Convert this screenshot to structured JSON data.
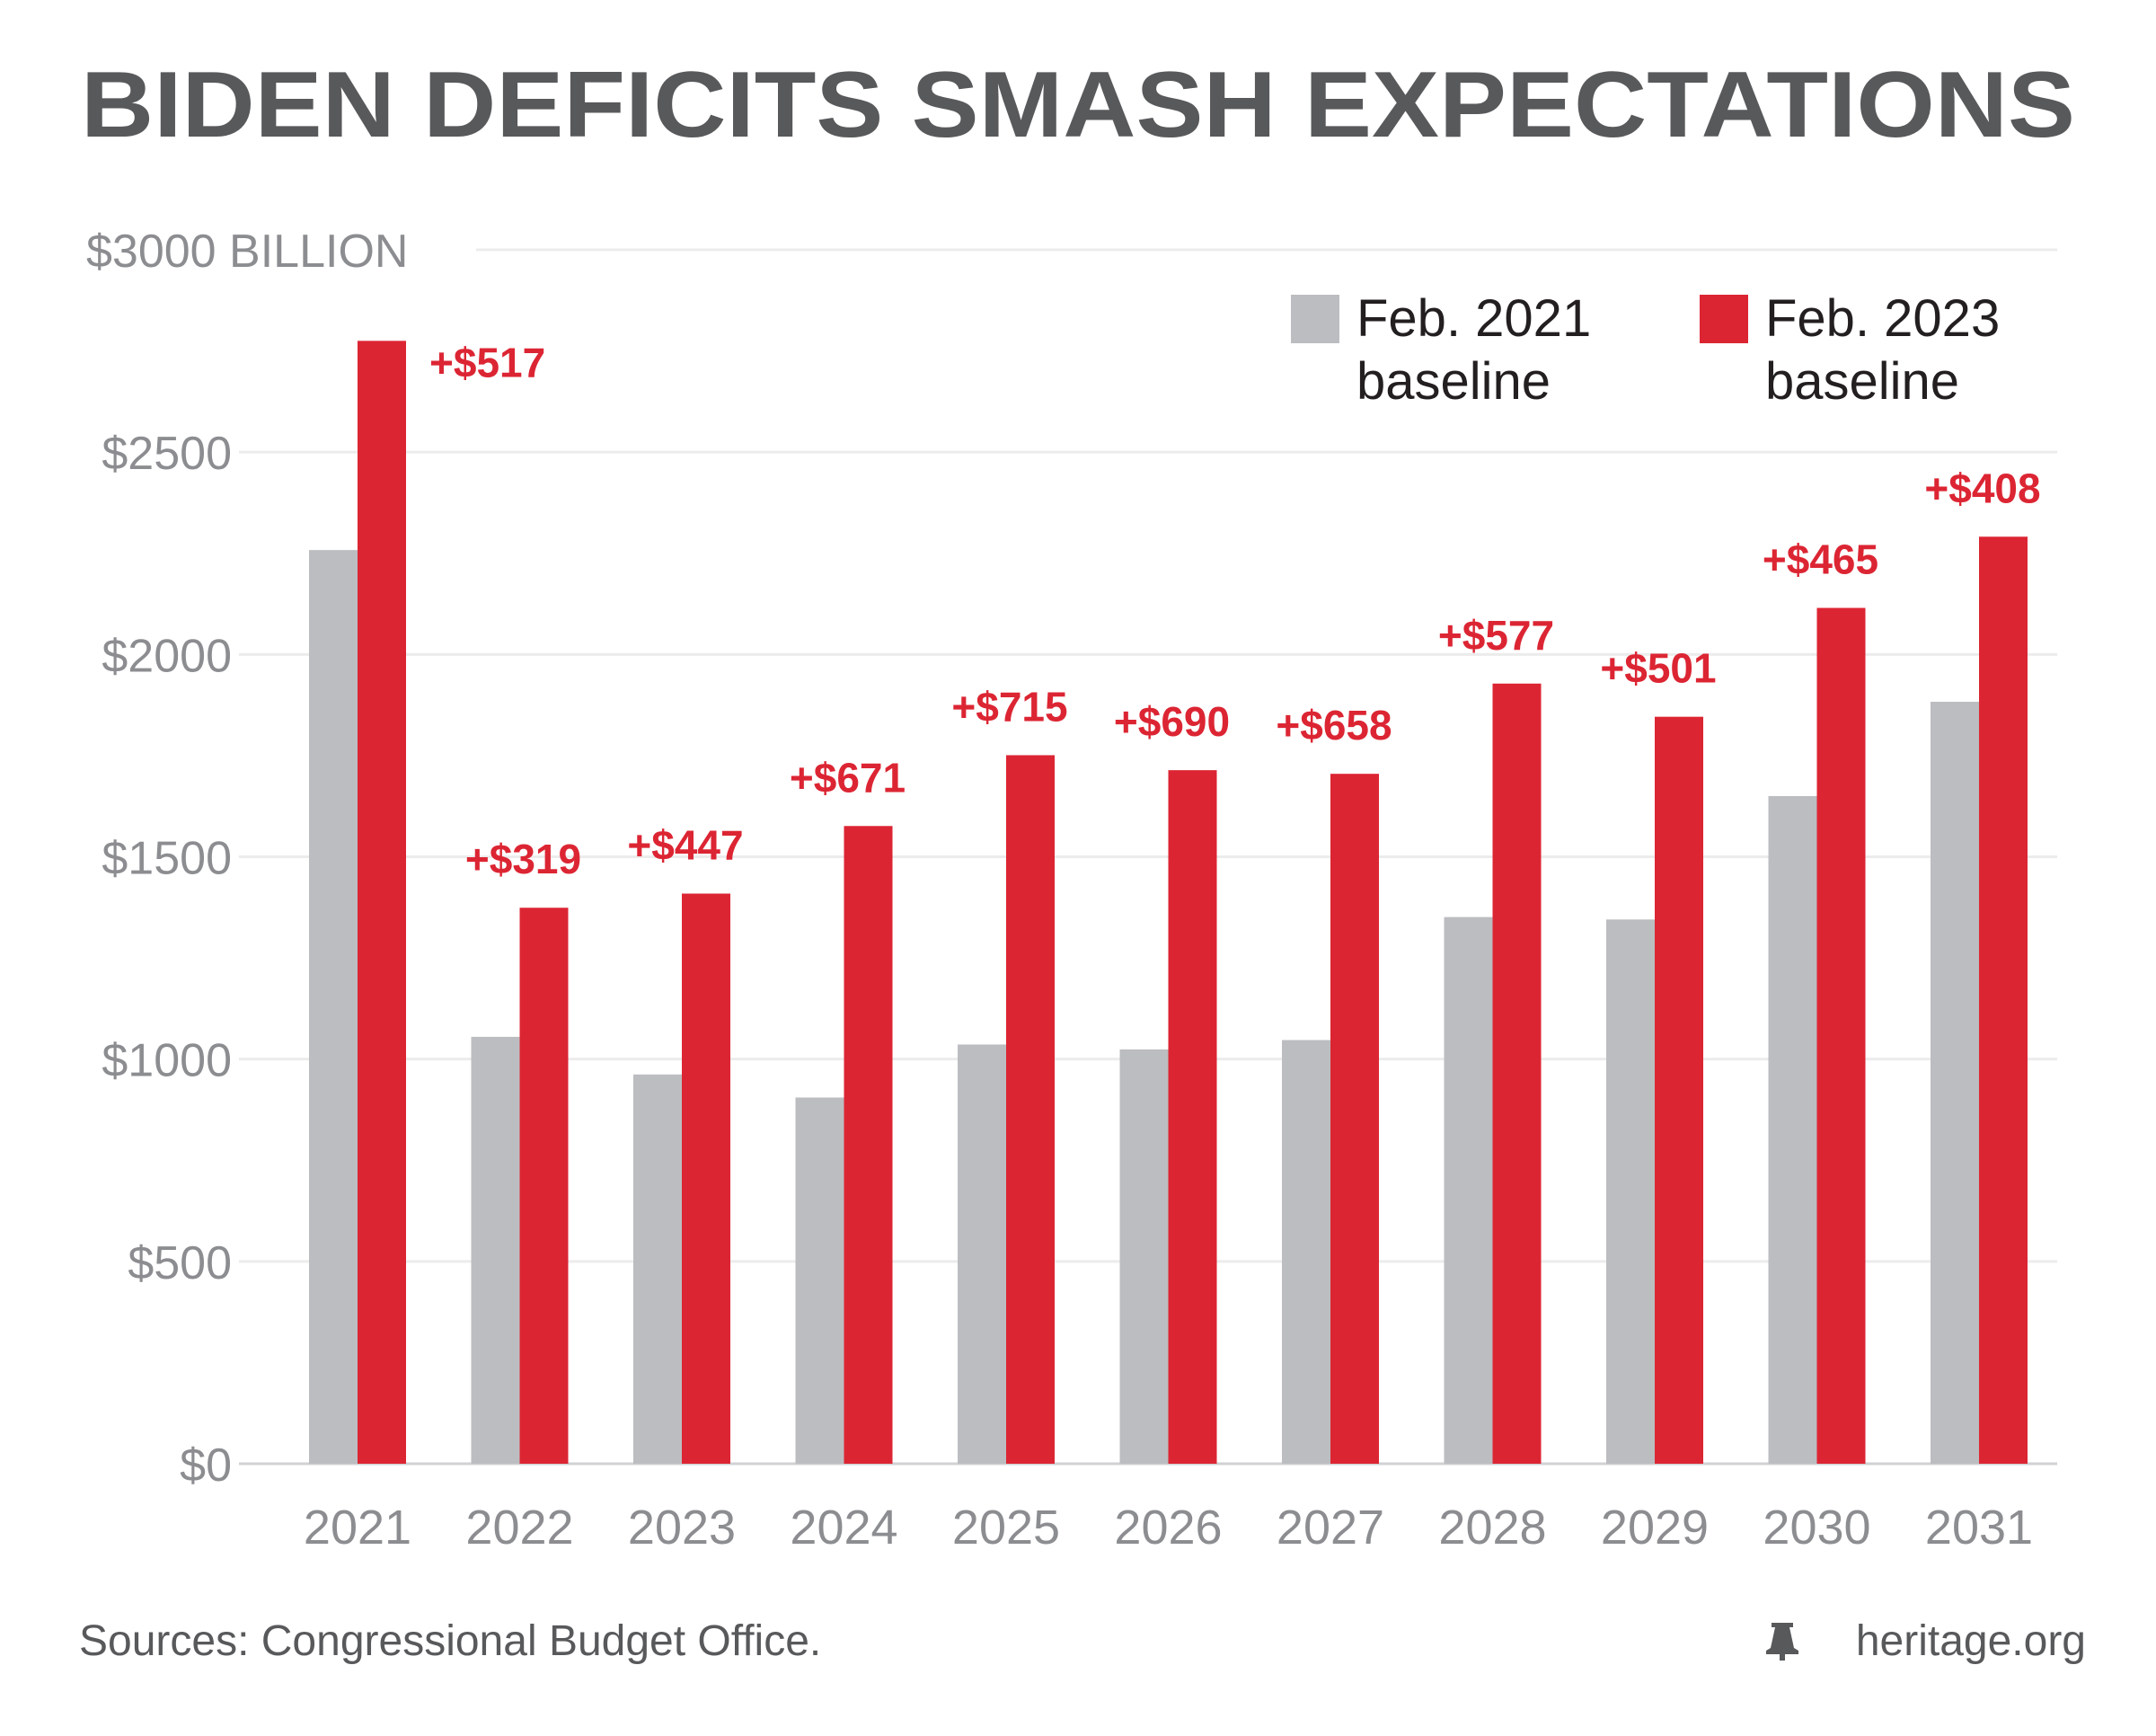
{
  "chart_data": {
    "type": "bar",
    "title": "BIDEN DEFICITS SMASH EXPECTATIONS",
    "y_unit_label": "BILLION",
    "y_tick_labels": [
      "$0",
      "$500",
      "$1000",
      "$1500",
      "$2000",
      "$2500",
      "$3000"
    ],
    "ylim": [
      0,
      3000
    ],
    "categories": [
      "2021",
      "2022",
      "2023",
      "2024",
      "2025",
      "2026",
      "2027",
      "2028",
      "2029",
      "2030",
      "2031"
    ],
    "series": [
      {
        "name": "Feb. 2021 baseline",
        "color": "#bcbdc0",
        "values": [
          2258,
          1055,
          962,
          905,
          1036,
          1024,
          1047,
          1351,
          1345,
          1650,
          1883
        ]
      },
      {
        "name": "Feb. 2023 baseline",
        "color": "#dc2533",
        "values": [
          2775,
          1374,
          1409,
          1576,
          1751,
          1714,
          1705,
          1928,
          1846,
          2115,
          2291
        ]
      }
    ],
    "annotations": [
      "+$517",
      "+$319",
      "+$447",
      "+$671",
      "+$715",
      "+$690",
      "+$658",
      "+$577",
      "+$501",
      "+$465",
      "+$408"
    ],
    "grid": true,
    "legend_position": "top-right"
  },
  "footer": {
    "source": "Sources: Congressional Budget Office.",
    "brand": "heritage.org",
    "brand_icon": "liberty-bell-icon"
  }
}
